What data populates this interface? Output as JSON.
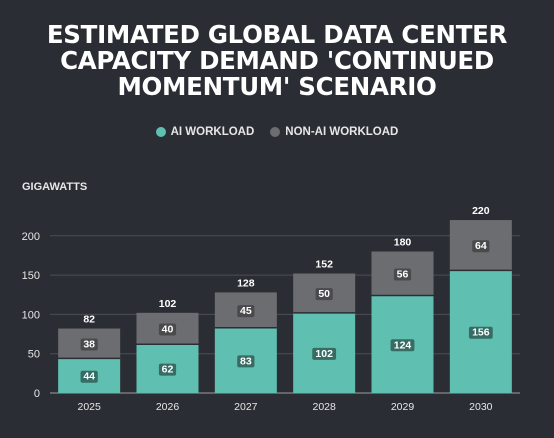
{
  "title_lines": [
    "ESTIMATED GLOBAL DATA CENTER",
    "CAPACITY DEMAND 'CONTINUED",
    "MOMENTUM' SCENARIO"
  ],
  "legend": [
    {
      "label": "AI WORKLOAD",
      "color": "#5fbfb0"
    },
    {
      "label": "NON-AI WORKLOAD",
      "color": "#6c6d70"
    }
  ],
  "chart_data": {
    "type": "bar",
    "stacked": true,
    "ylabel": "GIGAWATTS",
    "categories": [
      "2025",
      "2026",
      "2027",
      "2028",
      "2029",
      "2030"
    ],
    "series": [
      {
        "name": "AI WORKLOAD",
        "values": [
          44,
          62,
          83,
          102,
          124,
          156
        ],
        "color": "#5fbfb0"
      },
      {
        "name": "NON-AI WORKLOAD",
        "values": [
          38,
          40,
          45,
          50,
          56,
          64
        ],
        "color": "#6c6d70"
      }
    ],
    "totals": [
      82,
      102,
      128,
      152,
      180,
      220
    ],
    "yticks": [
      0,
      50,
      100,
      150,
      200
    ],
    "ylim": [
      0,
      220
    ],
    "grid": true,
    "legend_position": "top"
  }
}
